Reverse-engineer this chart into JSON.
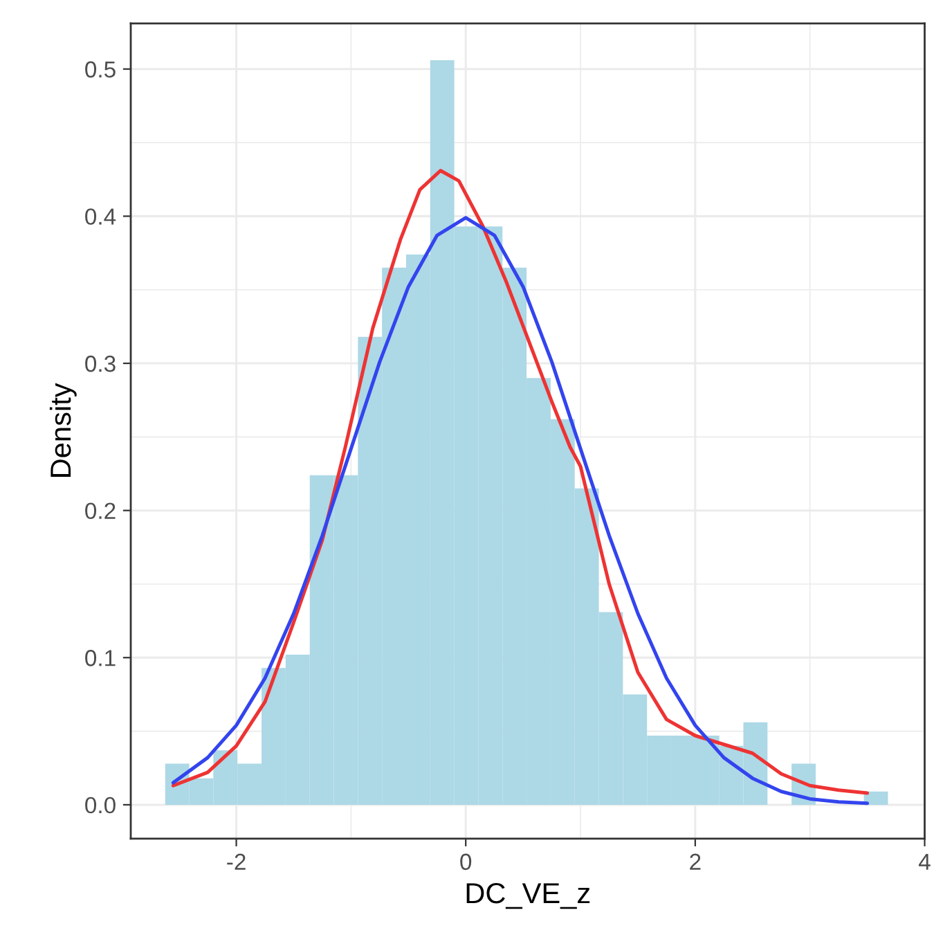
{
  "chart_data": {
    "type": "histogram",
    "xlabel": "DC_VE_z",
    "ylabel": "Density",
    "color": "#add8e6",
    "bins": [
      -2.62,
      -2.41,
      -2.2,
      -1.99,
      -1.78,
      -1.57,
      -1.36,
      -1.15,
      -0.94,
      -0.73,
      -0.52,
      -0.31,
      -0.1,
      0.11,
      0.32,
      0.53,
      0.74,
      0.95,
      1.16,
      1.37,
      1.58,
      1.79,
      2.0,
      2.21,
      2.42,
      2.63,
      2.84,
      3.05,
      3.26,
      3.47,
      3.68
    ],
    "values": [
      0.028,
      0.018,
      0.037,
      0.028,
      0.093,
      0.102,
      0.224,
      0.224,
      0.318,
      0.365,
      0.374,
      0.506,
      0.393,
      0.393,
      0.365,
      0.29,
      0.262,
      0.215,
      0.131,
      0.075,
      0.047,
      0.047,
      0.047,
      0.04,
      0.056,
      0,
      0.028,
      0,
      0,
      0.009
    ],
    "series": [
      {
        "type": "line",
        "color": "#ee3333",
        "x": [
          -2.55,
          -2.25,
          -2.0,
          -1.75,
          -1.5,
          -1.25,
          -1.05,
          -0.81,
          -0.57,
          -0.4,
          -0.22,
          -0.06,
          0.15,
          0.35,
          0.55,
          0.75,
          0.91,
          1.0,
          1.25,
          1.5,
          1.75,
          2.0,
          2.25,
          2.5,
          2.75,
          3.0,
          3.25,
          3.5
        ],
        "values": [
          0.013,
          0.022,
          0.04,
          0.07,
          0.124,
          0.18,
          0.243,
          0.324,
          0.384,
          0.418,
          0.431,
          0.424,
          0.393,
          0.356,
          0.315,
          0.274,
          0.243,
          0.23,
          0.15,
          0.09,
          0.058,
          0.047,
          0.041,
          0.035,
          0.021,
          0.013,
          0.01,
          0.008
        ]
      },
      {
        "type": "line",
        "color": "#3344ee",
        "x": [
          -2.55,
          -2.25,
          -2.0,
          -1.75,
          -1.5,
          -1.25,
          -1.0,
          -0.75,
          -0.5,
          -0.25,
          0,
          0.25,
          0.5,
          0.75,
          1.0,
          1.25,
          1.5,
          1.75,
          2.0,
          2.25,
          2.5,
          2.75,
          3.0,
          3.25,
          3.5
        ],
        "values": [
          0.015,
          0.032,
          0.054,
          0.086,
          0.13,
          0.183,
          0.242,
          0.301,
          0.352,
          0.387,
          0.399,
          0.387,
          0.352,
          0.301,
          0.242,
          0.183,
          0.13,
          0.086,
          0.054,
          0.032,
          0.018,
          0.009,
          0.004,
          0.002,
          0.001
        ]
      }
    ],
    "xlim": [
      -2.92,
      4.0
    ],
    "ylim": [
      -0.023,
      0.531
    ],
    "xticks": [
      -2,
      0,
      2,
      4
    ],
    "yticks": [
      {
        "value": 0,
        "label": "0.0"
      },
      {
        "value": 0.1,
        "label": "0.1"
      },
      {
        "value": 0.2,
        "label": "0.2"
      },
      {
        "value": 0.3,
        "label": "0.3"
      },
      {
        "value": 0.4,
        "label": "0.4"
      },
      {
        "value": 0.5,
        "label": "0.5"
      }
    ],
    "grid": true
  }
}
